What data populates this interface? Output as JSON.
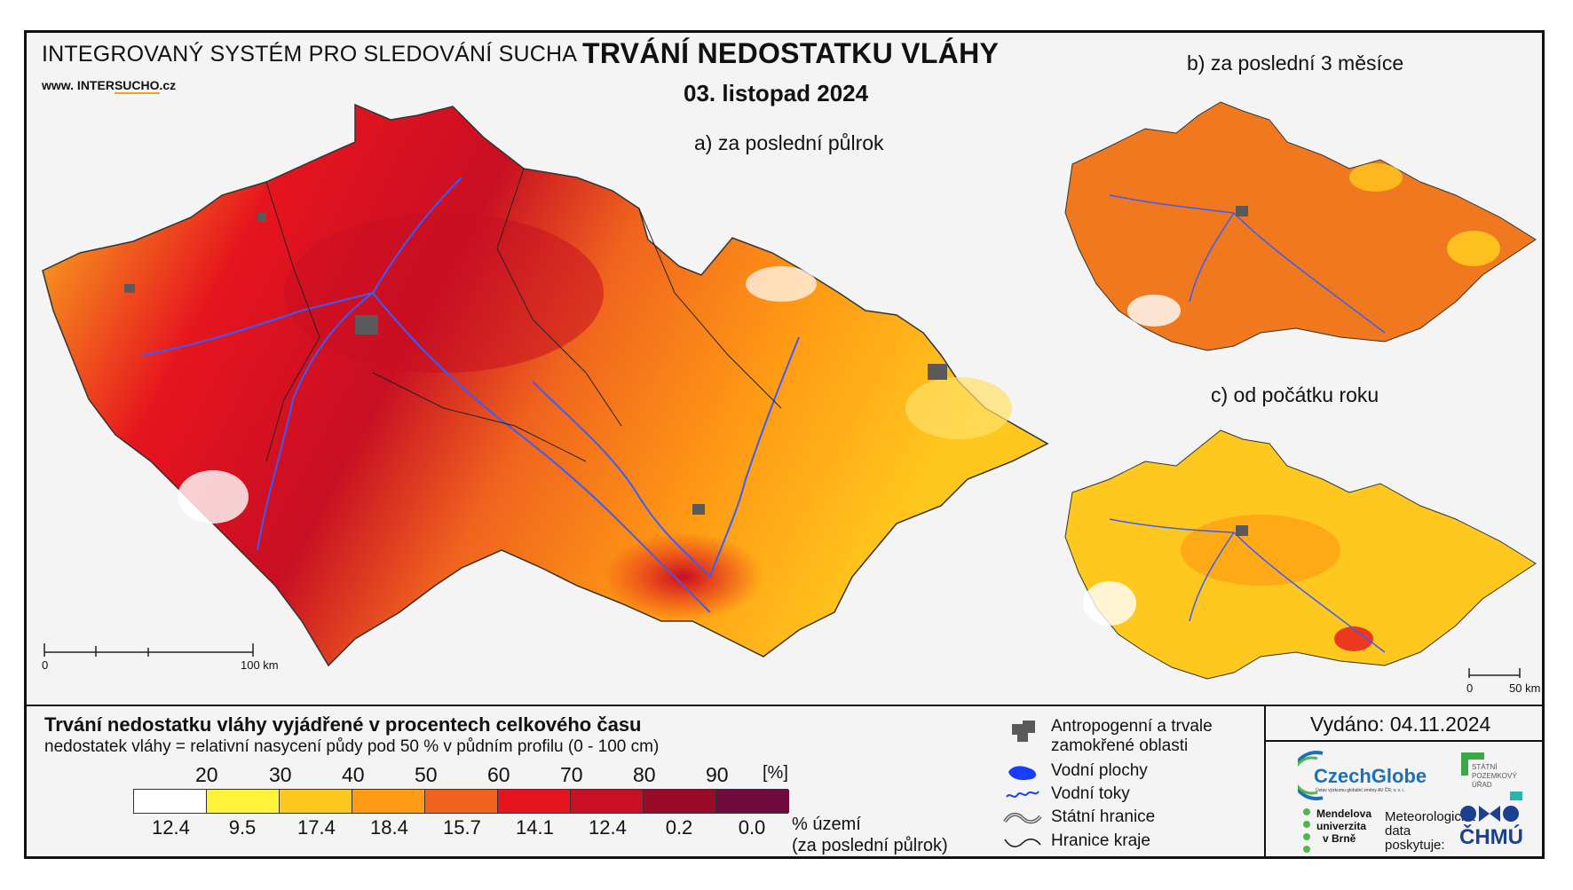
{
  "header": {
    "system_name": "INTEGROVANÝ SYSTÉM PRO SLEDOVÁNÍ SUCHA",
    "website_prefix": "www. INTER",
    "website_brand": "SUCHO",
    "website_suffix": ".cz",
    "title": "TRVÁNÍ NEDOSTATKU VLÁHY",
    "date": "03. listopad 2024"
  },
  "maps": {
    "main_label": "a) za poslední půlrok",
    "small_b_label": "b) za poslední 3 měsíce",
    "small_c_label": "c) od počátku roku",
    "main_scale": {
      "start": "0",
      "end": "100 km"
    },
    "small_scale": {
      "start": "0",
      "end": "50 km"
    }
  },
  "legend": {
    "title": "Trvání nedostatku vláhy vyjádřené v procentech celkového času",
    "subtitle": "nedostatek vláhy = relativní nasycení půdy pod 50 % v půdním profilu (0 - 100 cm)",
    "unit": "[%]",
    "thresholds": [
      "20",
      "30",
      "40",
      "50",
      "60",
      "70",
      "80",
      "90"
    ],
    "colors": [
      "#ffffff",
      "#fff23a",
      "#ffc81e",
      "#ff9b14",
      "#f0641e",
      "#e6141e",
      "#c80f23",
      "#9b0a28",
      "#6e0a3c"
    ],
    "area_percent": [
      "12.4",
      "9.5",
      "17.4",
      "18.4",
      "15.7",
      "14.1",
      "12.4",
      "0.2",
      "0.0"
    ],
    "area_label_1": "% území",
    "area_label_2": "(za poslední půlrok)"
  },
  "symbols": {
    "urban": "Antropogenní a trvale\nzamokřené oblasti",
    "urban_1": "Antropogenní a trvale",
    "urban_2": "zamokřené oblasti",
    "water_bodies": "Vodní plochy",
    "rivers": "Vodní toky",
    "state_border": "Státní hranice",
    "region_border": "Hranice kraje"
  },
  "issued": "Vydáno: 04.11.2024",
  "logos": {
    "czechglobe": "CzechGlobe",
    "czechglobe_sub": "Ústav výzkumu globální změny AV ČR, v. v. i.",
    "spu_1": "STÁTNÍ",
    "spu_2": "POZEMKOVÝ",
    "spu_3": "ÚŘAD",
    "mendel_1": "Mendelova",
    "mendel_2": "univerzita",
    "mendel_3": "v Brně",
    "met_1": "Meteorologická",
    "met_2": "data",
    "met_3": "poskytuje:",
    "chmu": "ČHMÚ"
  },
  "accent_colors": {
    "frame": "#111111",
    "rivers": "#3a5cff",
    "urban": "#5a5a5a"
  }
}
